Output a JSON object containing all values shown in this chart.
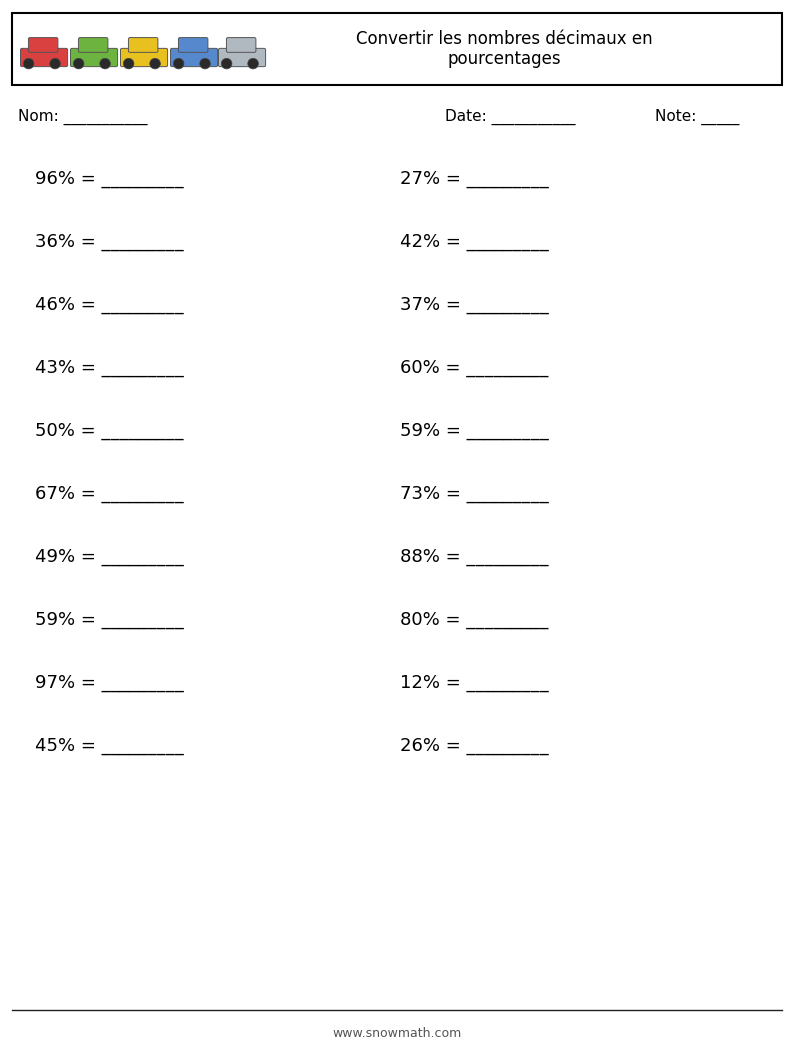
{
  "title": "Convertir les nombres décimaux en\npourcentages",
  "nom_label": "Nom: ___________",
  "date_label": "Date: ___________",
  "note_label": "Note: _____",
  "left_problems": [
    "96% = _________",
    "36% = _________",
    "46% = _________",
    "43% = _________",
    "50% = _________",
    "67% = _________",
    "49% = _________",
    "59% = _________",
    "97% = _________",
    "45% = _________"
  ],
  "right_problems": [
    "27% = _________",
    "42% = _________",
    "37% = _________",
    "60% = _________",
    "59% = _________",
    "73% = _________",
    "88% = _________",
    "80% = _________",
    "12% = _________",
    "26% = _________"
  ],
  "footer_text": "www.snowmath.com",
  "bg_color": "#ffffff",
  "text_color": "#000000",
  "header_border_color": "#000000",
  "car_colors": [
    "#d94040",
    "#6db33f",
    "#e8c020",
    "#5588cc",
    "#b0b8c0"
  ],
  "font_size_problems": 13,
  "font_size_labels": 11,
  "font_size_title": 12,
  "font_size_footer": 9,
  "line_color": "#222222"
}
